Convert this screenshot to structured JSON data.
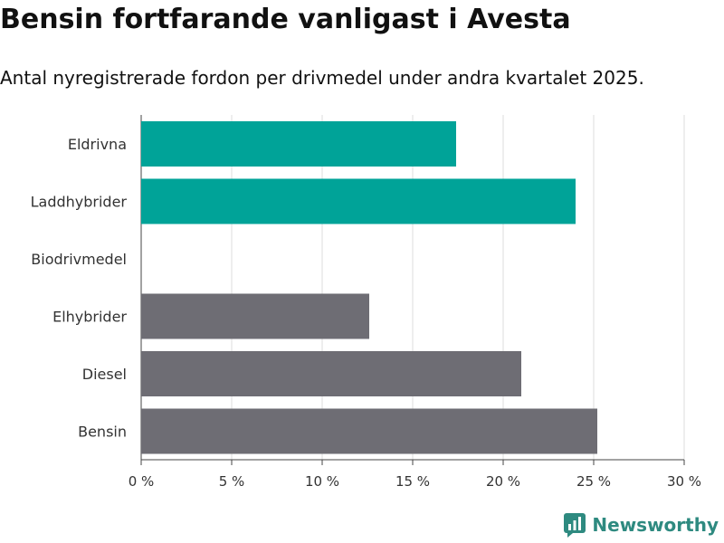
{
  "chart_data": {
    "type": "bar",
    "orientation": "horizontal",
    "title": "Bensin fortfarande vanligast i Avesta",
    "subtitle": "Antal nyregistrerade fordon per drivmedel under andra kvartalet 2025.",
    "categories": [
      "Eldrivna",
      "Laddhybrider",
      "Biodrivmedel",
      "Elhybrider",
      "Diesel",
      "Bensin"
    ],
    "values": [
      17.4,
      24.0,
      0,
      12.6,
      21.0,
      25.2
    ],
    "bar_colors": [
      "#00a398",
      "#00a398",
      "#00a398",
      "#6e6d74",
      "#6e6d74",
      "#6e6d74"
    ],
    "xlim": [
      0,
      30
    ],
    "xticks": [
      0,
      5,
      10,
      15,
      20,
      25,
      30
    ],
    "tick_labels": [
      "0 %",
      "5 %",
      "10 %",
      "15 %",
      "20 %",
      "25 %",
      "30 %"
    ],
    "grid": true,
    "xlabel": "",
    "ylabel": ""
  },
  "brand": {
    "name": "Newsworthy",
    "icon": "newsworthy-logo-icon",
    "color": "#2e8a80"
  }
}
